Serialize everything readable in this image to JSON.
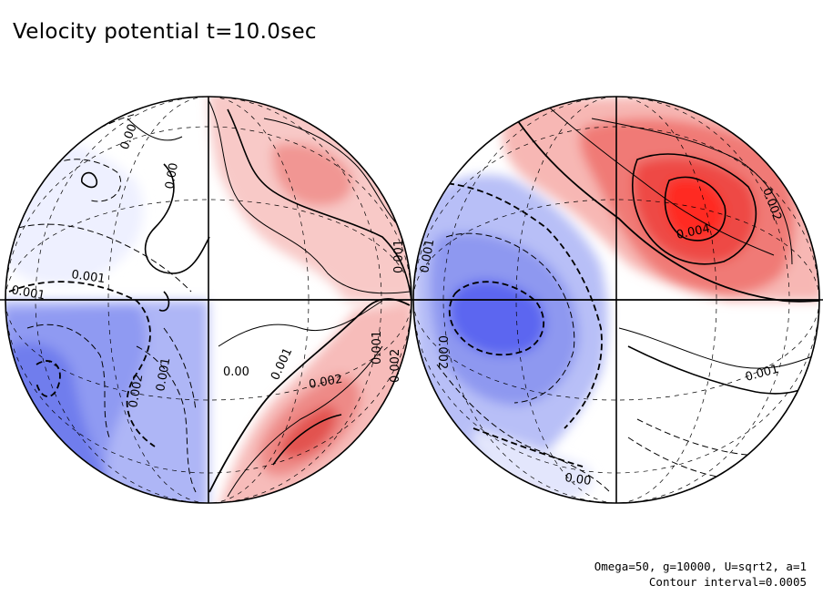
{
  "chart_data": {
    "type": "contour",
    "title": "Velocity potential t=10.0sec",
    "subtitle_lines": [
      "Omega=50, g=10000, U=sqrt2, a=1",
      "Contour interval=0.0005"
    ],
    "contour_interval": 0.0005,
    "positive_color": "#ff2222",
    "negative_color": "#4a5aff",
    "hemispheres": [
      {
        "name": "left",
        "contour_labels": [
          "0.001",
          "0.001",
          "0.00",
          "0.002",
          "0.002",
          "0.001",
          "0.00",
          "0.001",
          "0.002",
          "0.001",
          "0.001",
          "0.00"
        ],
        "extremes": [
          {
            "quadrant": "bottom-right",
            "sign": "positive",
            "peak": 0.003
          },
          {
            "quadrant": "top-right",
            "sign": "positive",
            "peak": 0.002
          },
          {
            "quadrant": "bottom-left",
            "sign": "negative",
            "peak": -0.0025
          },
          {
            "quadrant": "top-left",
            "sign": "negative",
            "peak": -0.0005
          }
        ]
      },
      {
        "name": "right",
        "contour_labels": [
          "0.004",
          "0.002",
          "0.001",
          "0.001",
          "0.002",
          "0.00"
        ],
        "extremes": [
          {
            "quadrant": "top-right",
            "sign": "positive",
            "peak": 0.0045
          },
          {
            "quadrant": "top-left",
            "sign": "positive",
            "peak": 0.0015
          },
          {
            "quadrant": "left-center",
            "sign": "negative",
            "peak": -0.0035
          },
          {
            "quadrant": "bottom",
            "sign": "negative",
            "peak": -0.0015
          }
        ]
      }
    ]
  }
}
